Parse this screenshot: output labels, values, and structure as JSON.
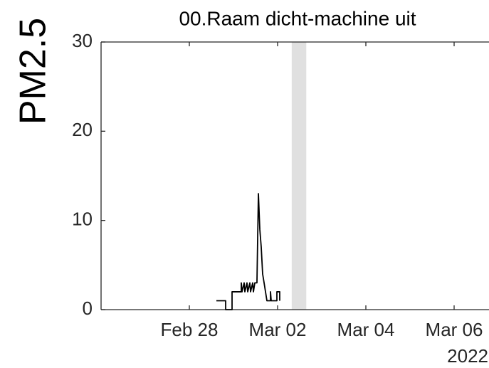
{
  "chart_data": {
    "type": "line",
    "title": "00.Raam dicht-machine uit",
    "ylabel": "PM2.5",
    "xlabel_secondary": "2022",
    "xlim": [
      57,
      65.8
    ],
    "ylim": [
      0,
      30
    ],
    "yticks": [
      0,
      10,
      20,
      30
    ],
    "xticks": [
      {
        "value": 59,
        "label": "Feb 28"
      },
      {
        "value": 61,
        "label": "Mar 02"
      },
      {
        "value": 63,
        "label": "Mar 04"
      },
      {
        "value": 65,
        "label": "Mar 06"
      }
    ],
    "shaded_regions": [
      [
        61.32,
        61.65
      ]
    ],
    "shade_color": "#e0e0e0",
    "series": [
      {
        "color": "#000000",
        "x": [
          59.613,
          59.823,
          59.823,
          59.968,
          59.968,
          60.177,
          60.177,
          60.194,
          60.242,
          60.258,
          60.306,
          60.323,
          60.371,
          60.387,
          60.435,
          60.452,
          60.484,
          60.532,
          60.565,
          60.597,
          60.629,
          60.661,
          60.694,
          60.726,
          60.758,
          60.839,
          60.839,
          60.855,
          60.984,
          60.984,
          61.048,
          61.048
        ],
        "values": [
          1,
          1,
          0,
          0,
          2,
          2,
          3,
          2,
          3,
          2,
          3,
          2,
          3,
          2,
          3,
          2,
          3,
          3,
          13,
          9,
          7,
          4,
          3,
          2,
          1,
          1,
          2,
          1,
          1,
          2,
          2,
          1
        ]
      }
    ]
  }
}
